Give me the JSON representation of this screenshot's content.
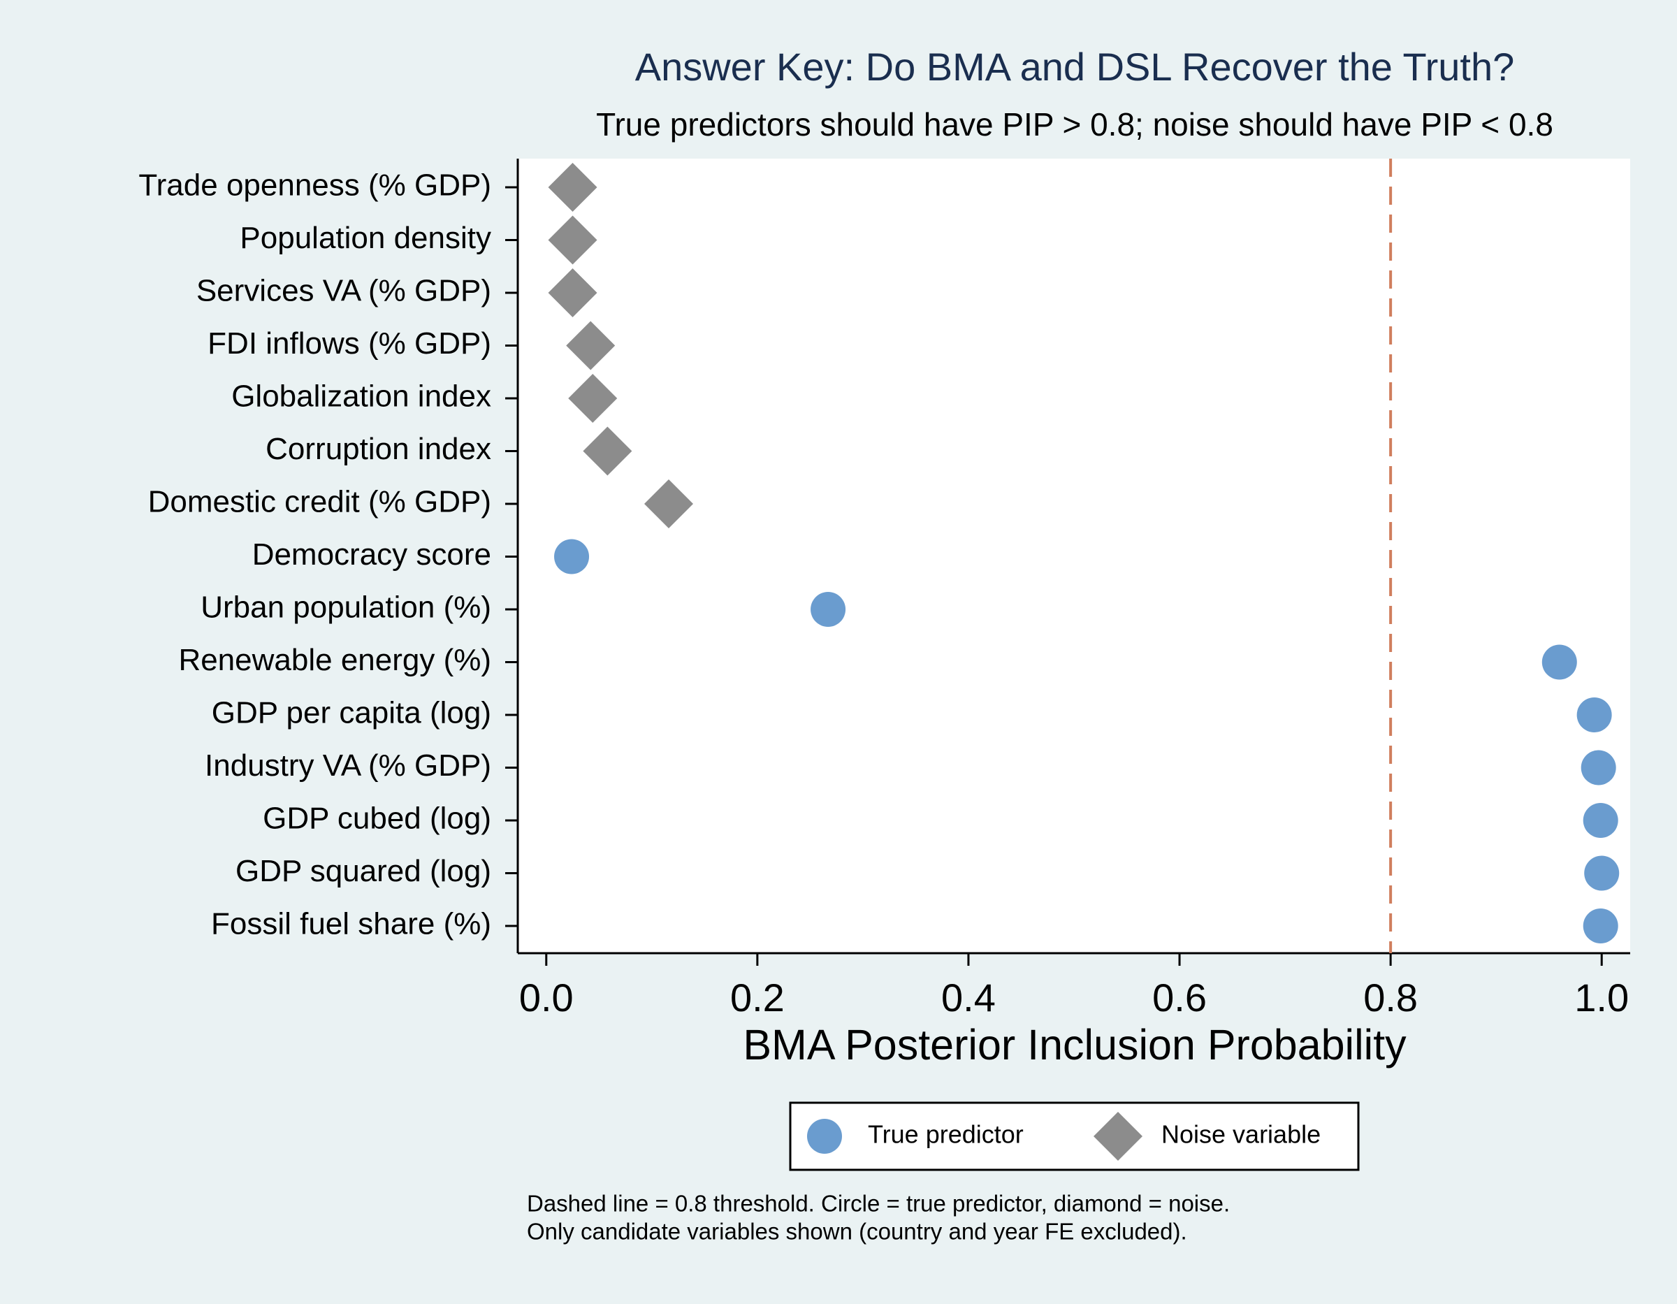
{
  "chart_data": {
    "type": "dot",
    "title": "Answer Key: Do BMA and DSL Recover the Truth?",
    "subtitle": "True predictors should have PIP > 0.8; noise should have PIP < 0.8",
    "x_label": "BMA Posterior Inclusion Probability",
    "categories": [
      "Trade openness (% GDP)",
      "Population density",
      "Services VA (% GDP)",
      "FDI inflows (% GDP)",
      "Globalization index",
      "Corruption index",
      "Domestic credit (% GDP)",
      "Democracy score",
      "Urban population (%)",
      "Renewable energy (%)",
      "GDP per capita (log)",
      "Industry VA (% GDP)",
      "GDP cubed (log)",
      "GDP squared (log)",
      "Fossil fuel share (%)"
    ],
    "series": [
      {
        "name": "True predictor",
        "color": "#6a9ccf",
        "marker": "circle",
        "values": [
          null,
          null,
          null,
          null,
          null,
          null,
          null,
          0.024,
          0.267,
          0.96,
          0.993,
          0.997,
          0.999,
          1.0,
          0.999
        ]
      },
      {
        "name": "Noise variable",
        "color": "#8c8c8c",
        "marker": "diamond",
        "values": [
          0.025,
          0.025,
          0.025,
          0.042,
          0.044,
          0.058,
          0.116,
          null,
          null,
          null,
          null,
          null,
          null,
          null,
          null
        ]
      }
    ],
    "threshold": 0.8,
    "threshold_color": "#d07e5d",
    "xlim": [
      -0.027,
      1.027
    ],
    "xticks": [
      {
        "value": 0,
        "label": "0.0"
      },
      0.2,
      0.4,
      0.6,
      0.8,
      {
        "value": 1,
        "label": "1.0"
      }
    ],
    "legend": "bottom",
    "notes": [
      "Dashed line = 0.8 threshold. Circle = true predictor, diamond = noise.",
      "Only candidate variables shown (country and year FE excluded)."
    ]
  }
}
